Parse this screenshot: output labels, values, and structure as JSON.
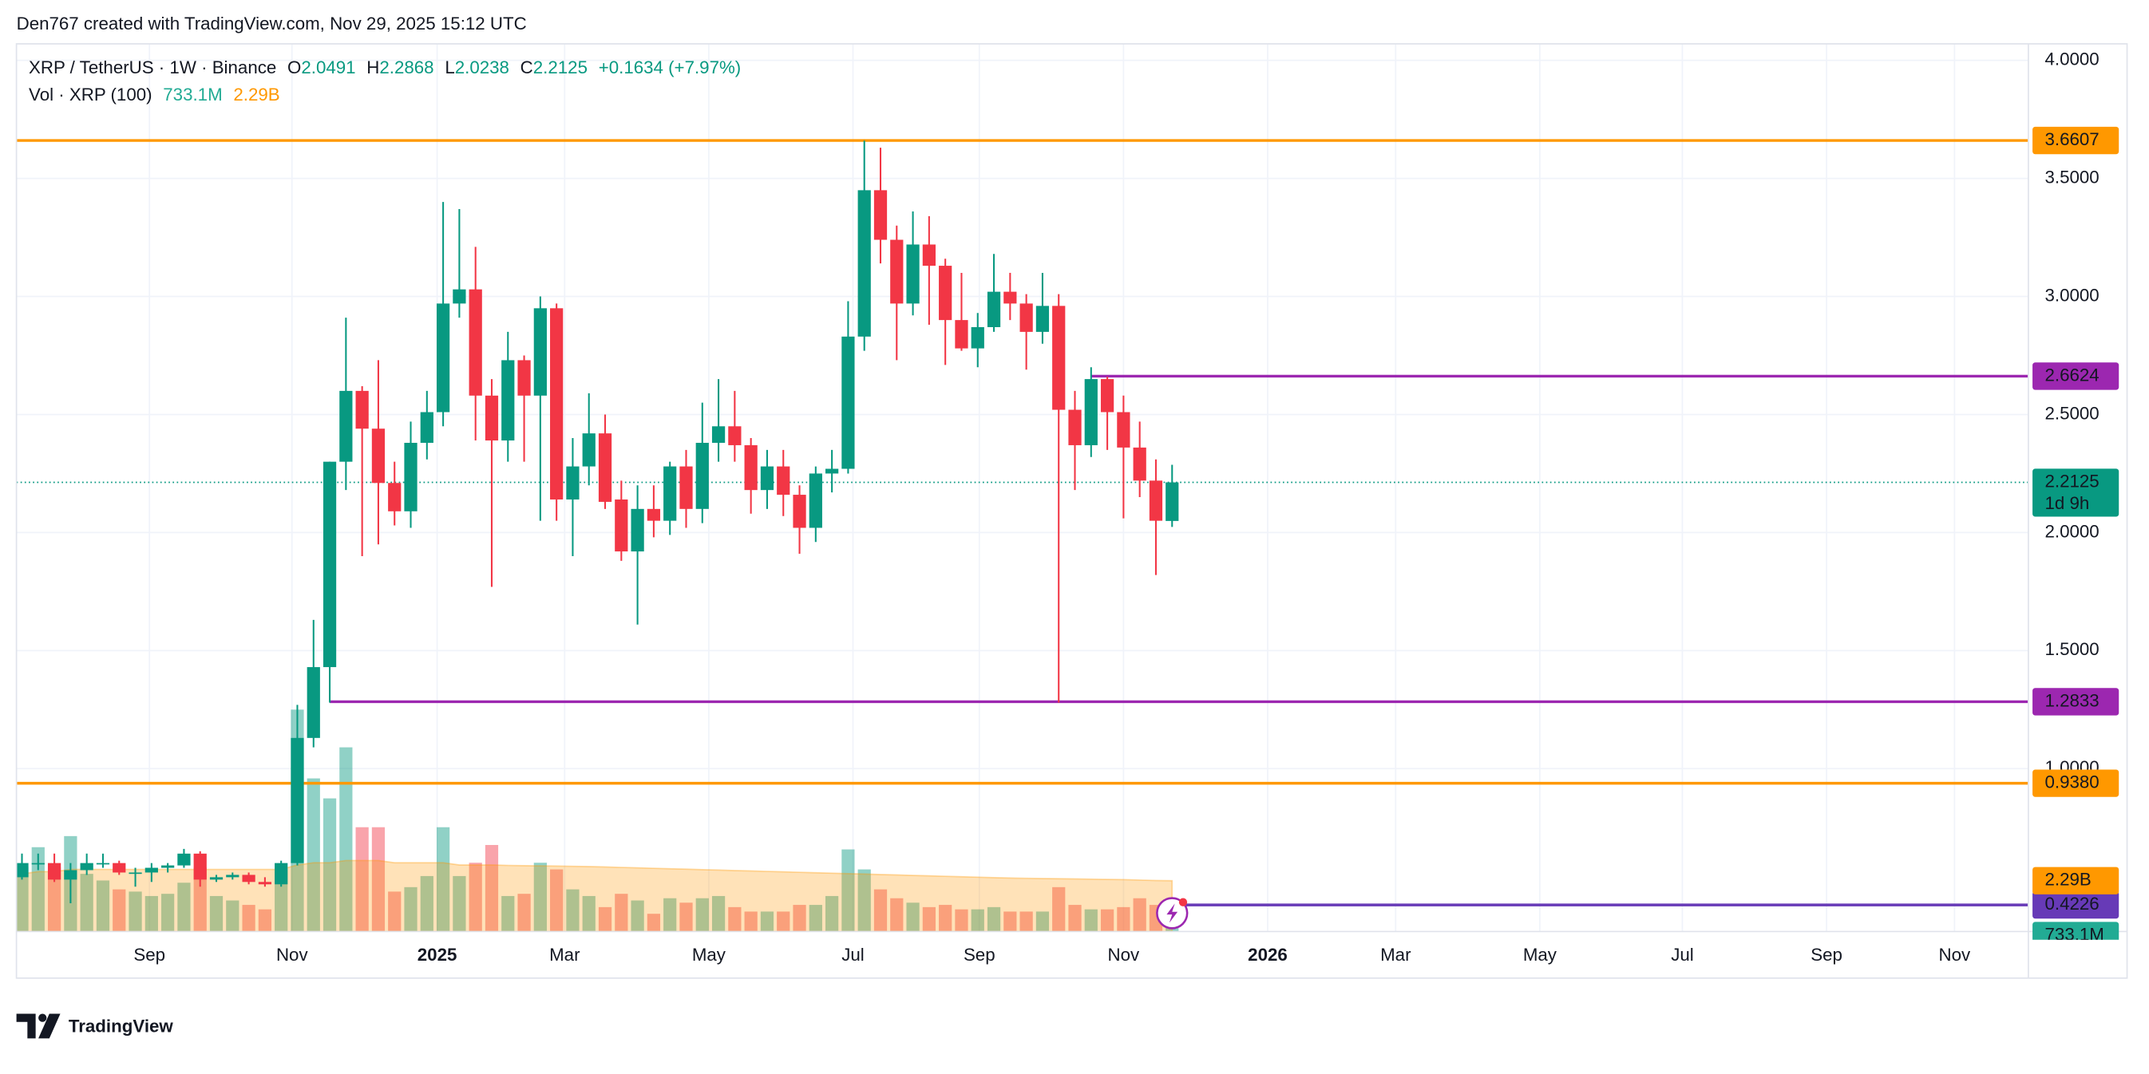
{
  "header": "Den767 created with TradingView.com, Nov 29, 2025 15:12 UTC",
  "brand": "TradingView",
  "chart_data": {
    "type": "candlestick",
    "legend": {
      "symbol": "XRP / TetherUS · 1W · Binance",
      "o": "O",
      "h": "H",
      "l": "L",
      "c": "C",
      "change": "+0.1634 (+7.97%)"
    },
    "open": [
      0.54,
      0.6,
      0.6,
      0.53,
      0.57,
      0.6,
      0.6,
      0.56,
      0.56,
      0.58,
      0.59,
      0.64,
      0.53,
      0.54,
      0.55,
      0.52,
      0.51,
      0.6,
      1.13,
      1.43,
      2.3,
      2.6,
      2.44,
      2.21,
      2.09,
      2.38,
      2.51,
      2.97,
      3.03,
      2.58,
      2.39,
      2.73,
      2.58,
      2.95,
      2.14,
      2.28,
      2.42,
      2.14,
      1.92,
      2.1,
      2.05,
      2.28,
      2.1,
      2.38,
      2.45,
      2.37,
      2.18,
      2.28,
      2.16,
      2.02,
      2.25,
      2.27,
      2.83,
      3.45,
      3.24,
      2.97,
      3.22,
      3.13,
      2.9,
      2.78,
      2.87,
      3.02,
      2.97,
      2.85,
      2.96,
      2.52,
      2.37,
      2.65,
      2.51,
      2.36,
      2.22,
      2.0491
    ],
    "high": [
      0.64,
      0.64,
      0.64,
      0.6,
      0.64,
      0.64,
      0.61,
      0.58,
      0.6,
      0.6,
      0.66,
      0.65,
      0.55,
      0.56,
      0.56,
      0.54,
      0.61,
      1.27,
      1.63,
      2.3,
      2.91,
      2.62,
      2.73,
      2.3,
      2.47,
      2.6,
      3.4,
      3.37,
      3.21,
      2.65,
      2.85,
      2.75,
      3.0,
      2.97,
      2.4,
      2.59,
      2.5,
      2.22,
      2.2,
      2.2,
      2.3,
      2.35,
      2.55,
      2.65,
      2.6,
      2.4,
      2.35,
      2.35,
      2.2,
      2.28,
      2.35,
      2.98,
      3.66,
      3.63,
      3.3,
      3.36,
      3.34,
      3.16,
      3.1,
      2.93,
      3.18,
      3.1,
      3.01,
      3.1,
      3.01,
      2.6,
      2.7,
      2.66,
      2.58,
      2.47,
      2.31,
      2.2868
    ],
    "low": [
      0.53,
      0.57,
      0.52,
      0.43,
      0.55,
      0.58,
      0.55,
      0.5,
      0.52,
      0.56,
      0.58,
      0.5,
      0.52,
      0.53,
      0.51,
      0.5,
      0.5,
      0.59,
      1.09,
      1.28,
      2.18,
      1.9,
      1.95,
      2.03,
      2.02,
      2.31,
      2.45,
      2.91,
      2.39,
      1.77,
      2.3,
      2.3,
      2.05,
      2.05,
      1.9,
      2.2,
      2.1,
      1.88,
      1.61,
      1.98,
      1.99,
      2.02,
      2.04,
      2.3,
      2.3,
      2.08,
      2.1,
      2.07,
      1.91,
      1.96,
      2.17,
      2.25,
      2.77,
      3.14,
      2.73,
      2.92,
      2.88,
      2.71,
      2.77,
      2.7,
      2.85,
      2.9,
      2.69,
      2.8,
      1.28,
      2.18,
      2.32,
      2.35,
      2.06,
      2.15,
      1.82,
      2.0238
    ],
    "close": [
      0.6,
      0.6,
      0.53,
      0.57,
      0.6,
      0.6,
      0.56,
      0.56,
      0.58,
      0.59,
      0.64,
      0.53,
      0.54,
      0.55,
      0.52,
      0.51,
      0.6,
      1.13,
      1.43,
      2.3,
      2.6,
      2.44,
      2.21,
      2.09,
      2.38,
      2.51,
      2.97,
      3.03,
      2.58,
      2.39,
      2.73,
      2.58,
      2.95,
      2.14,
      2.28,
      2.42,
      2.13,
      1.92,
      2.1,
      2.05,
      2.28,
      2.1,
      2.38,
      2.45,
      2.37,
      2.18,
      2.28,
      2.16,
      2.02,
      2.25,
      2.27,
      2.83,
      3.45,
      3.24,
      2.97,
      3.22,
      3.13,
      2.9,
      2.78,
      2.87,
      3.02,
      2.97,
      2.85,
      2.96,
      2.52,
      2.37,
      2.65,
      2.51,
      2.36,
      2.22,
      2.05,
      2.2125
    ],
    "colors": {
      "up": "#089981",
      "down": "#f23645"
    },
    "xlim": [
      -0.34,
      123.86
    ],
    "xticks": [
      {
        "value": 7.87,
        "label": "Sep"
      },
      {
        "value": 16.67,
        "label": "Nov"
      },
      {
        "value": 25.63,
        "label": "2025"
      },
      {
        "value": 33.5,
        "label": "Mar"
      },
      {
        "value": 42.4,
        "label": "May"
      },
      {
        "value": 51.3,
        "label": "Jul"
      },
      {
        "value": 59.1,
        "label": "Sep"
      },
      {
        "value": 68.0,
        "label": "Nov"
      },
      {
        "value": 76.9,
        "label": "2026"
      },
      {
        "value": 84.8,
        "label": "Mar"
      },
      {
        "value": 93.7,
        "label": "May"
      },
      {
        "value": 102.5,
        "label": "Jul"
      },
      {
        "value": 111.4,
        "label": "Sep"
      },
      {
        "value": 119.3,
        "label": "Nov"
      }
    ],
    "ylim": [
      0.31,
      4.07
    ],
    "yticks": [
      {
        "value": 1,
        "label": "1.0000"
      },
      {
        "value": 1.5,
        "label": "1.5000"
      },
      {
        "value": 2,
        "label": "2.0000"
      },
      {
        "value": 2.5,
        "label": "2.5000"
      },
      {
        "value": 3,
        "label": "3.0000"
      },
      {
        "value": 3.5,
        "label": "3.5000"
      },
      {
        "value": 4,
        "label": "4.0000"
      }
    ],
    "grid": true,
    "countdown": "1d 9h",
    "levels": [
      {
        "value": 3.6607,
        "label": "3.6607",
        "color": "#ff9800"
      },
      {
        "value": 2.6624,
        "label": "2.6624",
        "color": "#9c27b0"
      },
      {
        "value": 1.2833,
        "label": "1.2833",
        "color": "#9c27b0"
      },
      {
        "value": 0.938,
        "label": "0.9380",
        "color": "#ff9800"
      },
      {
        "value": 0.4226,
        "label": "0.4226",
        "color": "#673ab7"
      }
    ],
    "volume": {
      "name": "Vol · XRP (100)",
      "ylim": [
        0,
        40000000000.0
      ],
      "values": [
        2900000000.0,
        3800000000.0,
        2900000000.0,
        4300000000.0,
        2600000000.0,
        2300000000.0,
        1900000000.0,
        1800000000.0,
        1600000000.0,
        1700000000.0,
        2200000000.0,
        2900000000.0,
        1600000000.0,
        1400000000.0,
        1200000000.0,
        1000000000.0,
        2800000000.0,
        10000000000.0,
        6900000000.0,
        6000000000.0,
        8300000000.0,
        4700000000.0,
        4700000000.0,
        1800000000.0,
        2000000000.0,
        2500000000.0,
        4700000000.0,
        2500000000.0,
        3100000000.0,
        3900000000.0,
        1600000000.0,
        1700000000.0,
        3100000000.0,
        2800000000.0,
        1900000000.0,
        1600000000.0,
        1100000000.0,
        1700000000.0,
        1400000000.0,
        800000000.0,
        1500000000.0,
        1300000000.0,
        1500000000.0,
        1600000000.0,
        1100000000.0,
        900000000.0,
        900000000.0,
        900000000.0,
        1200000000.0,
        1200000000.0,
        1600000000.0,
        3700000000.0,
        2800000000.0,
        1900000000.0,
        1500000000.0,
        1300000000.0,
        1100000000.0,
        1200000000.0,
        1000000000.0,
        1000000000.0,
        1100000000.0,
        900000000.0,
        900000000.0,
        900000000.0,
        2000000000.0,
        1200000000.0,
        1000000000.0,
        1000000000.0,
        1100000000.0,
        1500000000.0,
        1200000000.0,
        733100000.0
      ],
      "value_label": "733.1M",
      "ma": [
        2600000000.0,
        2700000000.0,
        2700000000.0,
        2800000000.0,
        2800000000.0,
        2800000000.0,
        2800000000.0,
        2800000000.0,
        2800000000.0,
        2800000000.0,
        2800000000.0,
        2800000000.0,
        2800000000.0,
        2800000000.0,
        2800000000.0,
        2800000000.0,
        2800000000.0,
        3000000000.0,
        3100000000.0,
        3100000000.0,
        3200000000.0,
        3200000000.0,
        3200000000.0,
        3100000000.0,
        3100000000.0,
        3100000000.0,
        3100000000.0,
        3000000000.0,
        3000000000.0,
        3000000000.0,
        2980000000.0,
        2970000000.0,
        2960000000.0,
        2950000000.0,
        2940000000.0,
        2930000000.0,
        2910000000.0,
        2890000000.0,
        2870000000.0,
        2850000000.0,
        2830000000.0,
        2810000000.0,
        2790000000.0,
        2770000000.0,
        2750000000.0,
        2730000000.0,
        2710000000.0,
        2690000000.0,
        2670000000.0,
        2650000000.0,
        2630000000.0,
        2610000000.0,
        2590000000.0,
        2570000000.0,
        2550000000.0,
        2530000000.0,
        2510000000.0,
        2490000000.0,
        2470000000.0,
        2450000000.0,
        2430000000.0,
        2410000000.0,
        2400000000.0,
        2390000000.0,
        2380000000.0,
        2370000000.0,
        2360000000.0,
        2350000000.0,
        2340000000.0,
        2320000000.0,
        2300000000.0,
        2290000000.0
      ],
      "ma_label": "2.29B"
    }
  }
}
